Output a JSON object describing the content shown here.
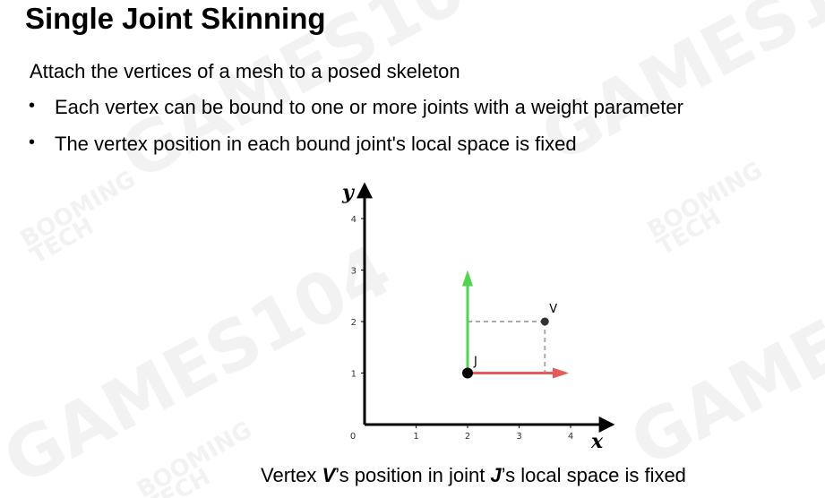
{
  "slide": {
    "title": "Single Joint Skinning",
    "intro": "Attach the vertices of a mesh to a posed skeleton",
    "bullets": [
      "Each vertex can be bound to one or more joints with a weight parameter",
      "The vertex position in each bound joint's local space is fixed"
    ],
    "caption": {
      "part1": "Vertex ",
      "v": "V",
      "part2": "’s position in joint ",
      "j": "J",
      "part3": "’s local space is fixed"
    }
  },
  "watermark": {
    "big": "GAMES104",
    "small_line1": "BOOMING",
    "small_line2": "TECH"
  },
  "diagram": {
    "x_axis_label": "x",
    "y_axis_label": "y",
    "x_ticks": [
      "0",
      "1",
      "2",
      "3",
      "4"
    ],
    "y_ticks": [
      "1",
      "2",
      "3",
      "4"
    ],
    "joint": {
      "label": "J",
      "x": 2,
      "y": 1
    },
    "vertex": {
      "label": "V",
      "x": 3.5,
      "y": 2
    },
    "x_arrow_end": 4,
    "y_arrow_end": 3,
    "colors": {
      "x_arrow": "#e85a5a",
      "y_arrow": "#4fd64f",
      "dashed": "#aaaaaa",
      "axis": "#000000"
    }
  }
}
